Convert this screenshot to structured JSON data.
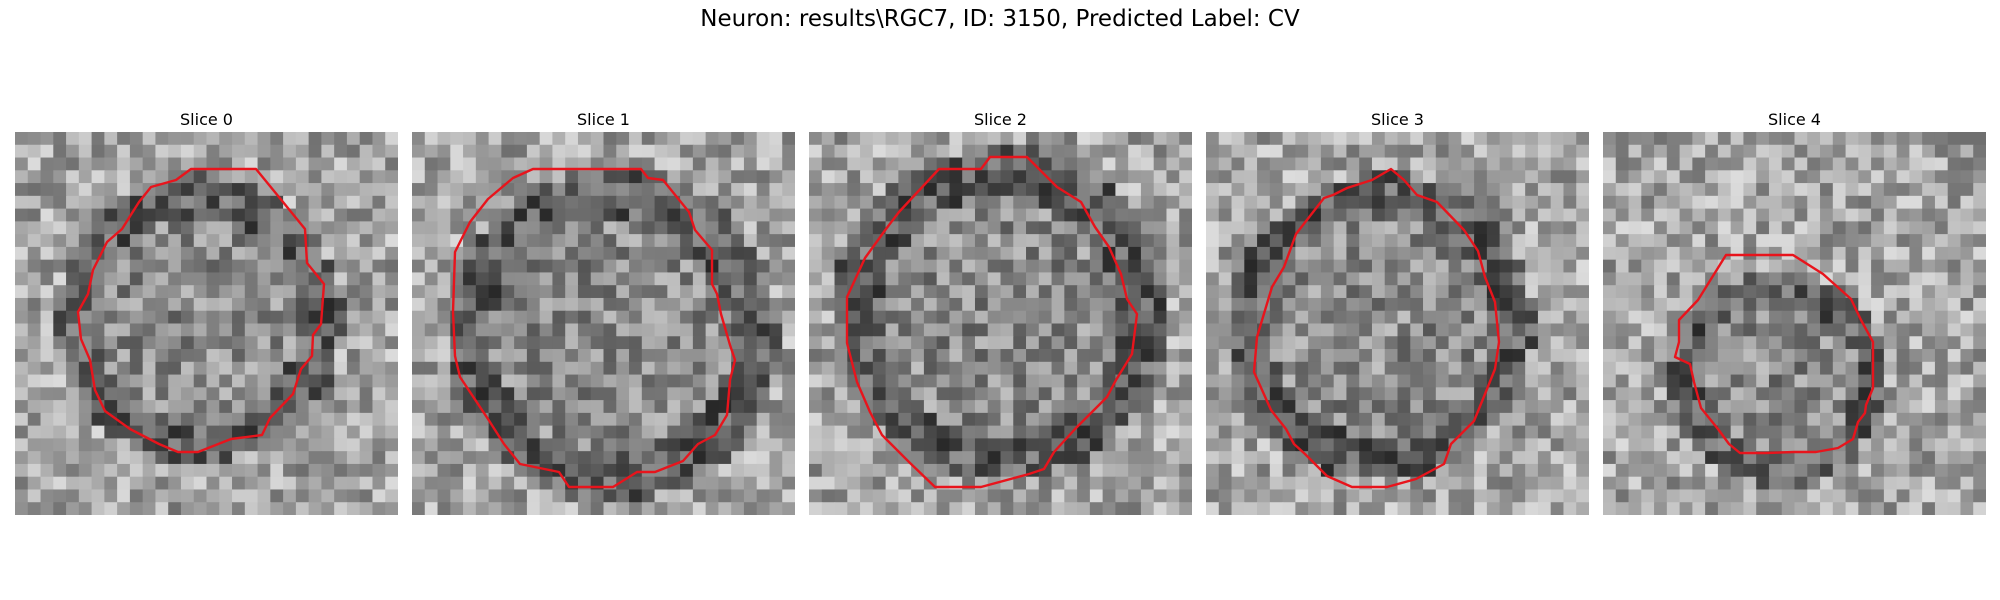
{
  "figure": {
    "suptitle": "Neuron: results\\RGC7, ID: 3150, Predicted Label: CV"
  },
  "contour_color": "#e8141c",
  "grid_size": 30,
  "panels": [
    {
      "title": "Slice 0",
      "seed": 11
    },
    {
      "title": "Slice 1",
      "seed": 29
    },
    {
      "title": "Slice 2",
      "seed": 47
    },
    {
      "title": "Slice 3",
      "seed": 73
    },
    {
      "title": "Slice 4",
      "seed": 97
    }
  ]
}
